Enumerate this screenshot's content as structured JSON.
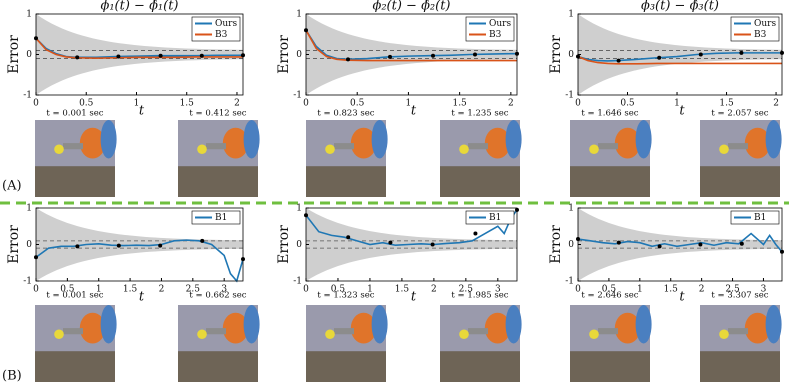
{
  "chart_data": [
    {
      "type": "line",
      "title": "ϕ₁(t) − ϕ̂₁(t)",
      "ylabel": "Error",
      "xlabel": "t",
      "x": [
        0,
        0.1,
        0.2,
        0.3,
        0.4,
        0.6,
        0.8,
        1.0,
        1.2,
        1.4,
        1.6,
        1.8,
        2.0,
        2.06
      ],
      "series": [
        {
          "name": "Ours",
          "color": "#1f77b4",
          "values": [
            0.4,
            0.15,
            0.02,
            -0.05,
            -0.07,
            -0.07,
            -0.05,
            -0.04,
            -0.03,
            -0.03,
            -0.03,
            -0.02,
            -0.02,
            -0.02
          ]
        },
        {
          "name": "B3",
          "color": "#d95319",
          "values": [
            0.4,
            0.12,
            0,
            -0.06,
            -0.08,
            -0.09,
            -0.08,
            -0.07,
            -0.07,
            -0.07,
            -0.06,
            -0.06,
            -0.06,
            -0.06
          ]
        }
      ],
      "markers": {
        "x": [
          0,
          0.41,
          0.82,
          1.24,
          1.65,
          2.06
        ],
        "y": [
          0.4,
          -0.07,
          -0.05,
          -0.03,
          -0.03,
          -0.02
        ]
      },
      "xlim": [
        0,
        2.06
      ],
      "ylim": [
        -1,
        1
      ],
      "xticks": [
        0,
        0.5,
        1,
        1.5,
        2
      ],
      "yticks": [
        -1,
        0,
        1
      ],
      "legend": "upper right"
    },
    {
      "type": "line",
      "title": "ϕ₂(t) − ϕ̂₂(t)",
      "ylabel": "Error",
      "xlabel": "t",
      "x": [
        0,
        0.1,
        0.2,
        0.3,
        0.4,
        0.6,
        0.8,
        1.0,
        1.2,
        1.4,
        1.6,
        1.8,
        2.0,
        2.06
      ],
      "series": [
        {
          "name": "Ours",
          "color": "#1f77b4",
          "values": [
            0.6,
            0.2,
            -0.02,
            -0.1,
            -0.12,
            -0.1,
            -0.06,
            -0.04,
            -0.03,
            -0.02,
            0,
            0.01,
            0.02,
            0.02
          ]
        },
        {
          "name": "B3",
          "color": "#d95319",
          "values": [
            0.6,
            0.15,
            -0.05,
            -0.12,
            -0.14,
            -0.15,
            -0.15,
            -0.15,
            -0.15,
            -0.15,
            -0.15,
            -0.15,
            -0.15,
            -0.15
          ]
        }
      ],
      "markers": {
        "x": [
          0,
          0.41,
          0.82,
          1.24,
          1.65,
          2.06
        ],
        "y": [
          0.6,
          -0.12,
          -0.06,
          -0.03,
          0,
          0.02
        ]
      },
      "xlim": [
        0,
        2.06
      ],
      "ylim": [
        -1,
        1
      ],
      "xticks": [
        0,
        0.5,
        1,
        1.5,
        2
      ],
      "yticks": [
        -1,
        0,
        1
      ],
      "legend": "upper right"
    },
    {
      "type": "line",
      "title": "ϕ₃(t) − ϕ̂₃(t)",
      "ylabel": "Error",
      "xlabel": "t",
      "x": [
        0,
        0.1,
        0.2,
        0.3,
        0.4,
        0.6,
        0.8,
        1.0,
        1.2,
        1.4,
        1.6,
        1.8,
        2.0,
        2.06
      ],
      "series": [
        {
          "name": "Ours",
          "color": "#1f77b4",
          "values": [
            -0.05,
            -0.12,
            -0.15,
            -0.16,
            -0.15,
            -0.12,
            -0.08,
            -0.05,
            0,
            0.03,
            0.04,
            0.04,
            0.04,
            0.04
          ]
        },
        {
          "name": "B3",
          "color": "#d95319",
          "values": [
            -0.05,
            -0.15,
            -0.2,
            -0.22,
            -0.23,
            -0.23,
            -0.22,
            -0.22,
            -0.22,
            -0.22,
            -0.22,
            -0.22,
            -0.22,
            -0.22
          ]
        }
      ],
      "markers": {
        "x": [
          0,
          0.41,
          0.82,
          1.24,
          1.65,
          2.06
        ],
        "y": [
          -0.05,
          -0.15,
          -0.08,
          0,
          0.04,
          0.04
        ]
      },
      "xlim": [
        0,
        2.06
      ],
      "ylim": [
        -1,
        1
      ],
      "xticks": [
        0,
        0.5,
        1,
        1.5,
        2
      ],
      "yticks": [
        -1,
        0,
        1
      ],
      "legend": "upper right"
    },
    {
      "type": "line",
      "ylabel": "Error",
      "xlabel": "t",
      "x": [
        0,
        0.2,
        0.4,
        0.6,
        0.8,
        1.0,
        1.2,
        1.4,
        1.6,
        1.8,
        2.0,
        2.2,
        2.4,
        2.6,
        2.8,
        3.0,
        3.1,
        3.2,
        3.3
      ],
      "series": [
        {
          "name": "B1",
          "color": "#1f77b4",
          "values": [
            -0.35,
            -0.1,
            -0.05,
            -0.05,
            0,
            0.02,
            -0.02,
            -0.03,
            -0.02,
            -0.03,
            0,
            0.1,
            0.12,
            0.1,
            0,
            -0.3,
            -0.8,
            -1.0,
            -0.4
          ]
        }
      ],
      "markers": {
        "x": [
          0,
          0.66,
          1.32,
          1.98,
          2.65,
          3.3
        ],
        "y": [
          -0.35,
          -0.05,
          -0.03,
          -0.03,
          0.1,
          -0.4
        ]
      },
      "xlim": [
        0,
        3.3
      ],
      "ylim": [
        -1,
        1
      ],
      "xticks": [
        0,
        0.5,
        1,
        1.5,
        2,
        2.5,
        3
      ],
      "yticks": [
        -1,
        0,
        1
      ],
      "legend": "upper right"
    },
    {
      "type": "line",
      "ylabel": "Error",
      "xlabel": "t",
      "x": [
        0,
        0.2,
        0.4,
        0.6,
        0.8,
        1.0,
        1.2,
        1.4,
        1.6,
        1.8,
        2.0,
        2.2,
        2.4,
        2.6,
        2.8,
        3.0,
        3.1,
        3.2,
        3.3
      ],
      "series": [
        {
          "name": "B1",
          "color": "#1f77b4",
          "values": [
            0.8,
            0.35,
            0.25,
            0.2,
            0.1,
            0,
            0.05,
            -0.02,
            0,
            0.02,
            0,
            0.03,
            0.05,
            0.1,
            0.3,
            0.5,
            0.3,
            0.7,
            0.95
          ]
        }
      ],
      "markers": {
        "x": [
          0,
          0.66,
          1.32,
          1.98,
          2.65,
          3.3
        ],
        "y": [
          0.8,
          0.2,
          0.05,
          0,
          0.3,
          0.95
        ]
      },
      "xlim": [
        0,
        3.3
      ],
      "ylim": [
        -1,
        1
      ],
      "xticks": [
        0,
        0.5,
        1,
        1.5,
        2,
        2.5,
        3
      ],
      "yticks": [
        -1,
        0,
        1
      ],
      "legend": "upper right"
    },
    {
      "type": "line",
      "ylabel": "Error",
      "xlabel": "t",
      "x": [
        0,
        0.2,
        0.4,
        0.6,
        0.8,
        1.0,
        1.2,
        1.4,
        1.6,
        1.8,
        2.0,
        2.2,
        2.4,
        2.6,
        2.8,
        3.0,
        3.1,
        3.2,
        3.3
      ],
      "series": [
        {
          "name": "B1",
          "color": "#1f77b4",
          "values": [
            0.15,
            0.1,
            0.05,
            0.02,
            0.08,
            0.05,
            -0.05,
            0.02,
            -0.05,
            0,
            0.05,
            -0.02,
            0.05,
            0.02,
            0.3,
            0,
            0.25,
            0,
            -0.2
          ]
        }
      ],
      "markers": {
        "x": [
          0,
          0.66,
          1.32,
          1.98,
          2.65,
          3.3
        ],
        "y": [
          0.15,
          0.05,
          -0.05,
          0,
          0.02,
          -0.2
        ]
      },
      "xlim": [
        0,
        3.3
      ],
      "ylim": [
        -1,
        1
      ],
      "xticks": [
        0,
        0.5,
        1,
        1.5,
        2,
        2.5,
        3
      ],
      "yticks": [
        -1,
        0,
        1
      ],
      "legend": "upper right"
    }
  ],
  "rows": [
    {
      "label": "(A)",
      "frames": [
        "t = 0.001 sec",
        "t = 0.412 sec",
        "t = 0.823 sec",
        "t = 1.235 sec",
        "t = 1.646 sec",
        "t = 2.057 sec"
      ]
    },
    {
      "label": "(B)",
      "frames": [
        "t = 0.001 sec",
        "t = 0.662 sec",
        "t = 1.323 sec",
        "t = 1.985 sec",
        "t = 2.646 sec",
        "t = 3.307 sec"
      ]
    }
  ]
}
